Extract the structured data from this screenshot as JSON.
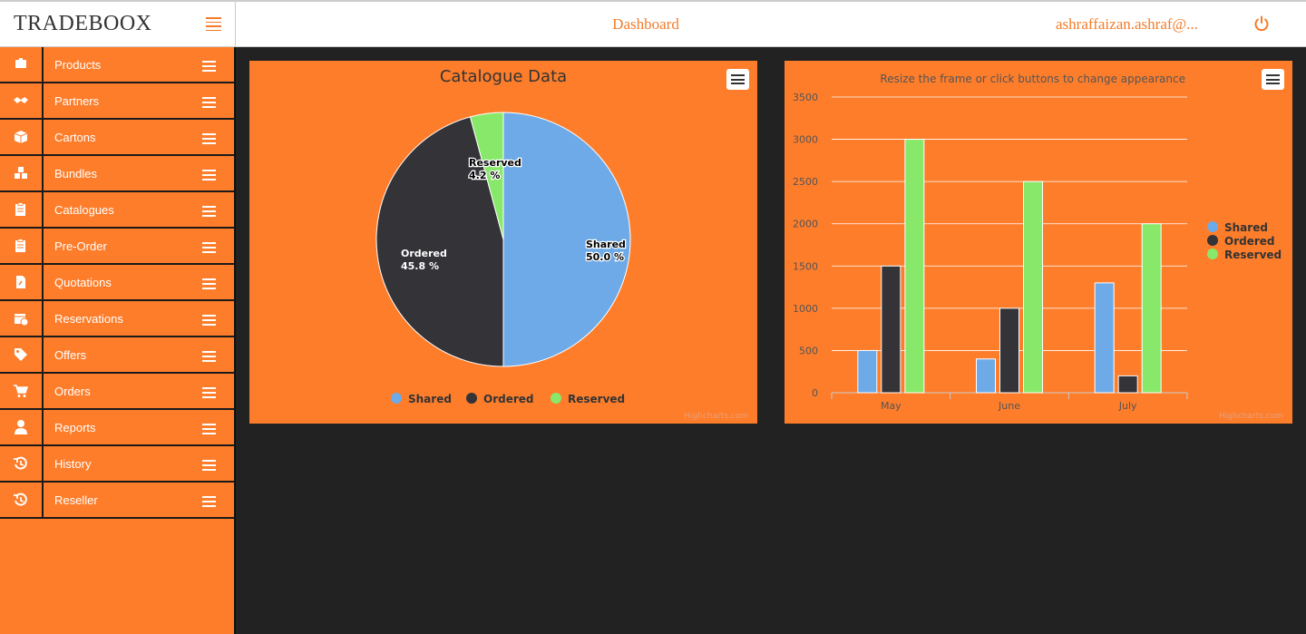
{
  "header": {
    "brand": "TRADEBOOX",
    "title": "Dashboard",
    "user": "ashraffaizan.ashraf@..."
  },
  "sidebar": {
    "items": [
      {
        "label": "Products",
        "icon": "products-icon"
      },
      {
        "label": "Partners",
        "icon": "handshake-icon"
      },
      {
        "label": "Cartons",
        "icon": "box-icon"
      },
      {
        "label": "Bundles",
        "icon": "bundles-icon"
      },
      {
        "label": "Catalogues",
        "icon": "clipboard-icon"
      },
      {
        "label": "Pre-Order",
        "icon": "clipboard-icon"
      },
      {
        "label": "Quotations",
        "icon": "document-icon"
      },
      {
        "label": "Reservations",
        "icon": "calendar-icon"
      },
      {
        "label": "Offers",
        "icon": "tag-icon"
      },
      {
        "label": "Orders",
        "icon": "cart-icon"
      },
      {
        "label": "Reports",
        "icon": "user-icon"
      },
      {
        "label": "History",
        "icon": "history-icon"
      },
      {
        "label": "Reseller",
        "icon": "history-icon"
      }
    ]
  },
  "colors": {
    "accent": "#fd7d2b",
    "shared": "#6eaae8",
    "ordered": "#333338",
    "reserved": "#88e86a",
    "background": "#222222"
  },
  "chart_data": [
    {
      "type": "pie",
      "title": "Catalogue Data",
      "categories": [
        "Shared",
        "Ordered",
        "Reserved"
      ],
      "values": [
        50.0,
        45.8,
        4.2
      ],
      "data_labels": [
        "50.0 %",
        "45.8 %",
        "4.2 %"
      ],
      "legend": "bottom-center",
      "credits": "Highcharts.com"
    },
    {
      "type": "bar",
      "title": "",
      "subtitle": "Resize the frame or click buttons to change appearance",
      "categories": [
        "May",
        "June",
        "July"
      ],
      "series": [
        {
          "name": "Shared",
          "values": [
            500,
            400,
            1300
          ]
        },
        {
          "name": "Ordered",
          "values": [
            1500,
            1000,
            200
          ]
        },
        {
          "name": "Reserved",
          "values": [
            3000,
            2500,
            2000
          ]
        }
      ],
      "yticks": [
        "0",
        "500",
        "1000",
        "1500",
        "2000",
        "2500",
        "3000",
        "3500"
      ],
      "ylim": [
        0,
        3500
      ],
      "grid": true,
      "legend": "right-middle",
      "credits": "Highcharts.com"
    }
  ]
}
